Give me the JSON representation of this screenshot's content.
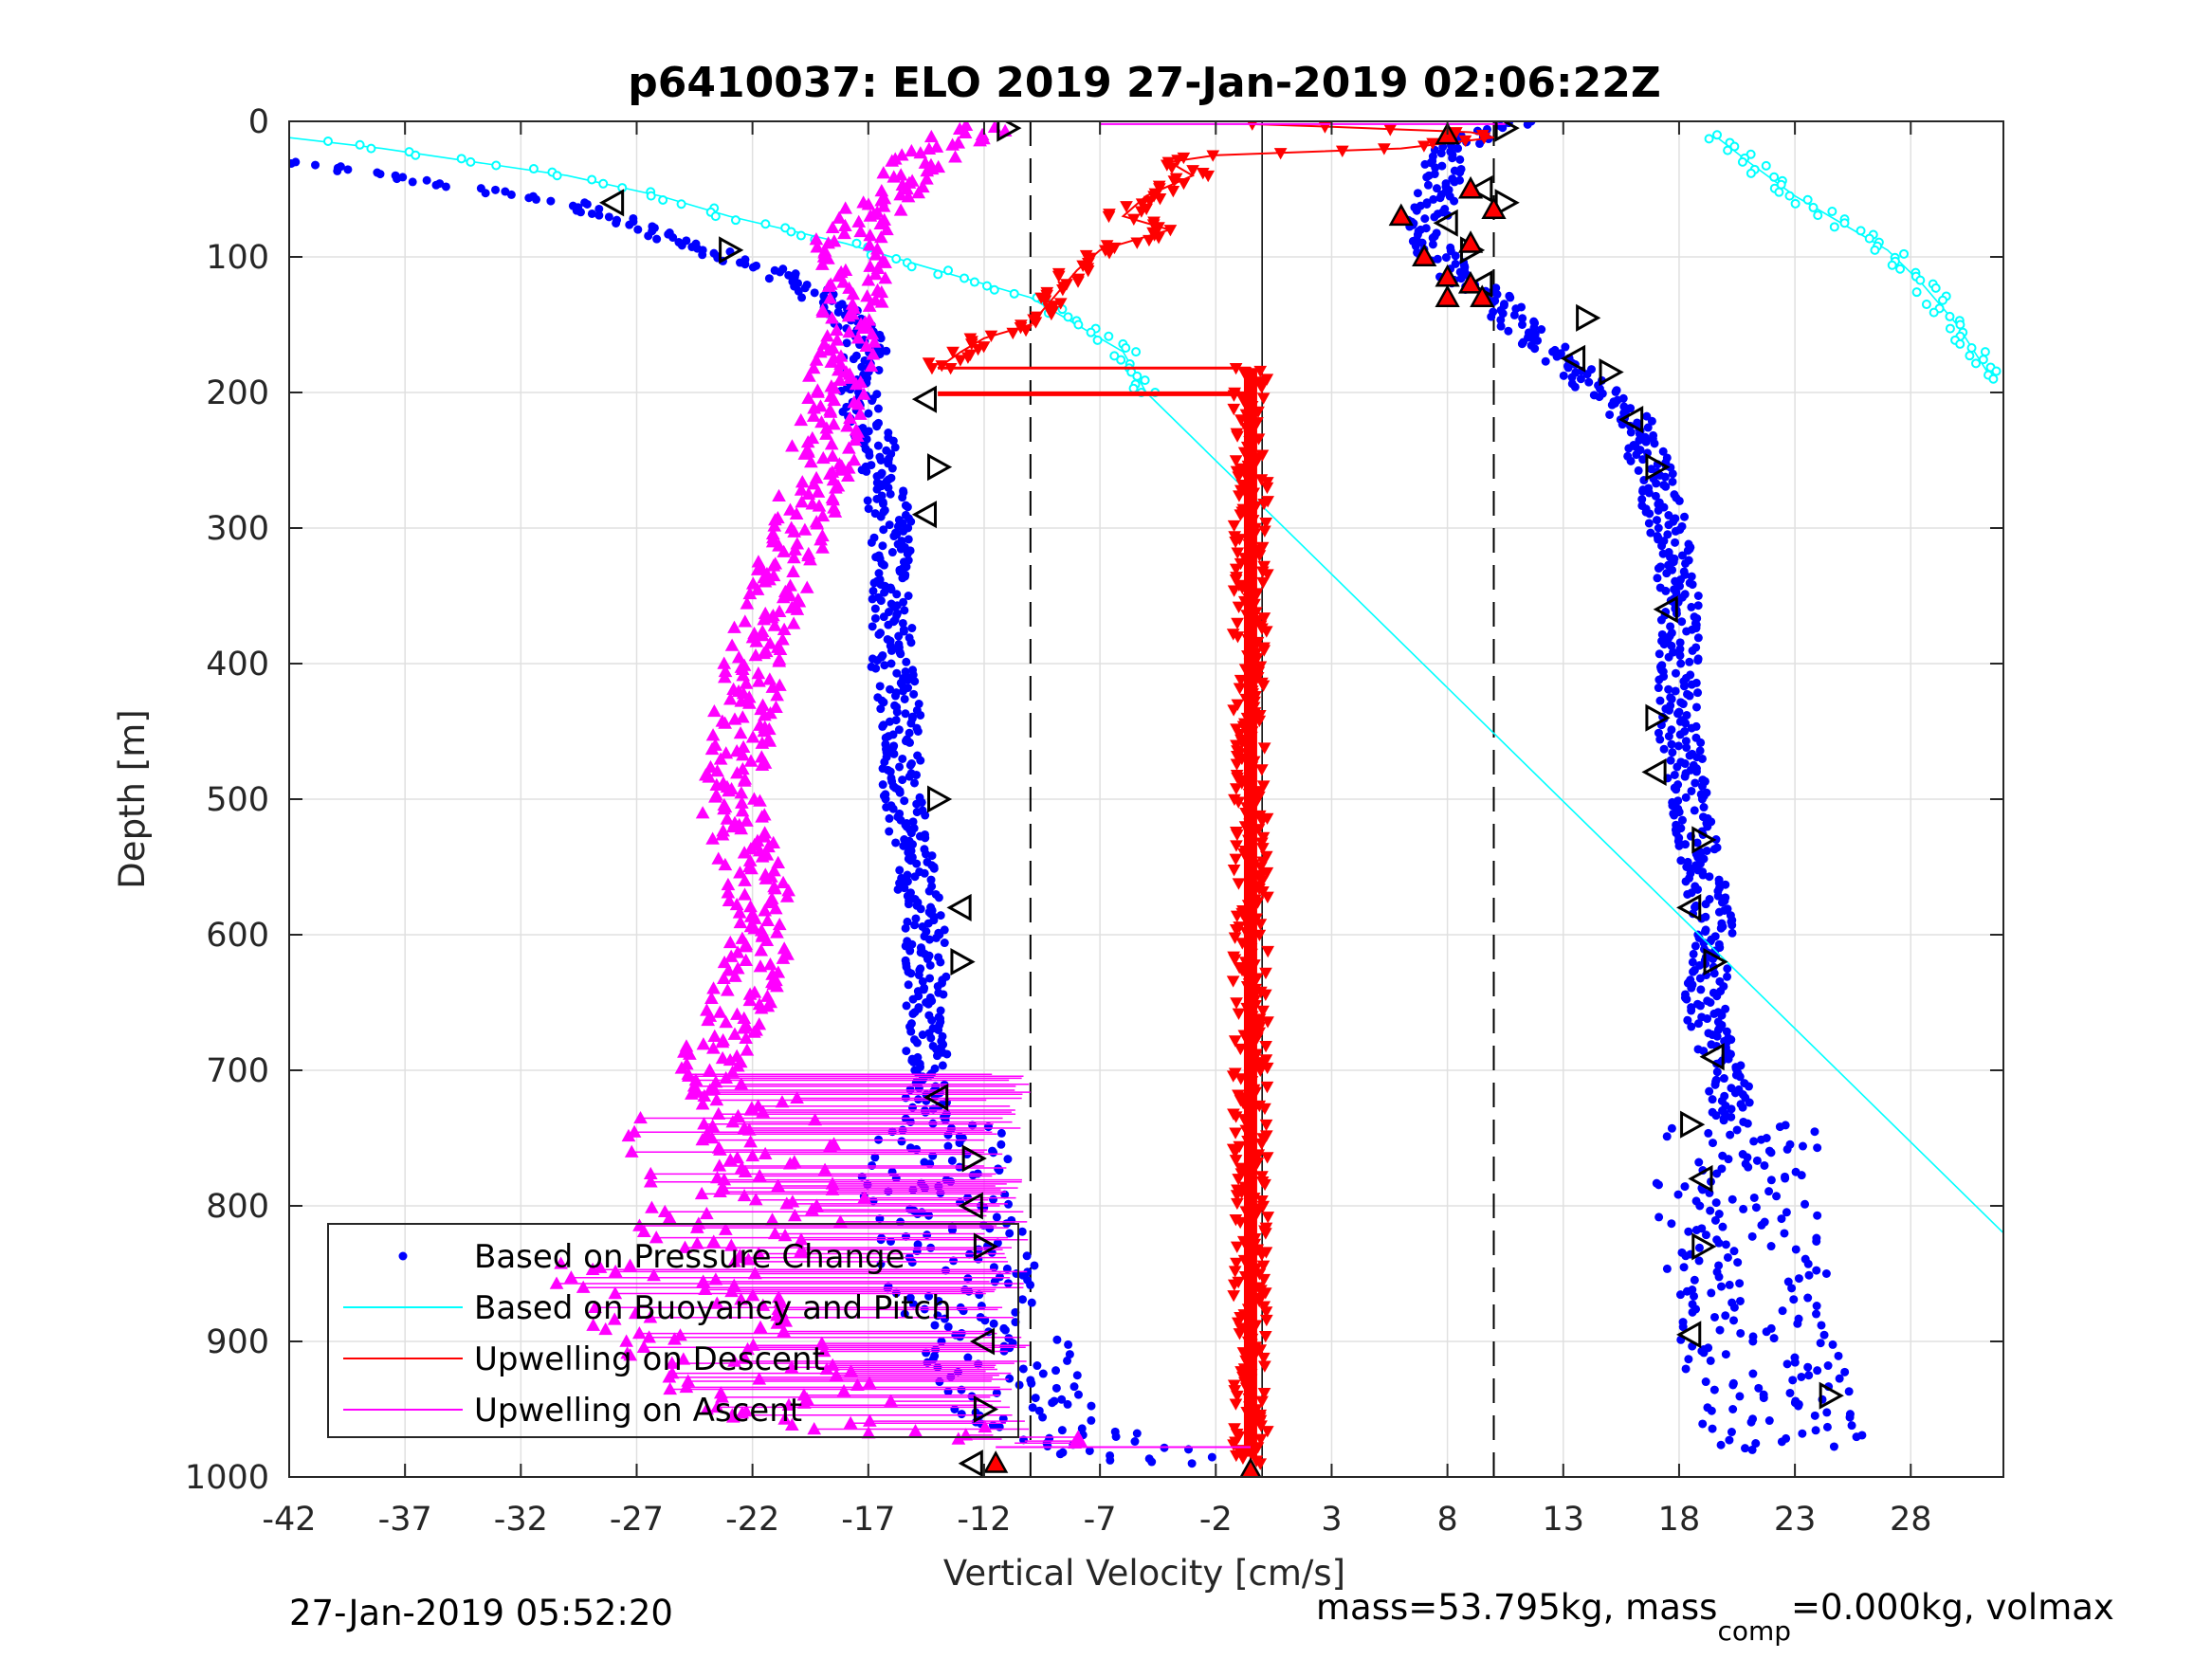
{
  "chart_data": {
    "type": "scatter",
    "title": "p6410037: ELO 2019 27-Jan-2019 02:06:22Z",
    "xlabel": "Vertical Velocity [cm/s]",
    "ylabel": "Depth [m]",
    "xlim": [
      -42,
      32
    ],
    "ylim": [
      0,
      1000
    ],
    "y_reversed": true,
    "grid": true,
    "legend_position": "bottom-left",
    "x_ticks": [
      "-42",
      "-37",
      "-32",
      "-27",
      "-22",
      "-17",
      "-12",
      "-7",
      "-2",
      "3",
      "8",
      "13",
      "18",
      "23",
      "28"
    ],
    "y_ticks": [
      "0",
      "100",
      "200",
      "300",
      "400",
      "500",
      "600",
      "700",
      "800",
      "900",
      "1000"
    ],
    "reference_lines": {
      "dashed_x": [
        -10,
        10
      ],
      "solid_x": [
        0
      ]
    },
    "series": [
      {
        "name": "Based on Pressure Change",
        "color": "#0000ff",
        "marker": "dot",
        "branches": [
          {
            "velocity": [
              -42,
              -38,
              -30,
              -24,
              -21,
              -19,
              -17,
              -17.5,
              -16.5,
              -16,
              -16,
              -16,
              -15.5,
              -15.5,
              -15,
              -14.5,
              -14.5,
              -14.5,
              -14.5,
              -14,
              -13,
              -11.5,
              -10,
              -7,
              -4
            ],
            "depth": [
              30,
              40,
              60,
              95,
              110,
              130,
              160,
              200,
              250,
              300,
              350,
              400,
              450,
              500,
              550,
              600,
              650,
              700,
              750,
              800,
              850,
              900,
              950,
              975,
              990
            ]
          },
          {
            "velocity": [
              11,
              8,
              7.5,
              7,
              8,
              10,
              11,
              12.5,
              14,
              16,
              17,
              17.5,
              18,
              18,
              18,
              18.5,
              19,
              19.5,
              19,
              20,
              20.5,
              20.5,
              21,
              21.5,
              22,
              23
            ],
            "depth": [
              0,
              20,
              60,
              80,
              110,
              130,
              150,
              170,
              190,
              220,
              260,
              300,
              350,
              400,
              450,
              500,
              550,
              600,
              650,
              700,
              750,
              800,
              850,
              900,
              950,
              980
            ]
          }
        ]
      },
      {
        "name": "Based on Buoyancy and Pitch",
        "color": "#00ffff",
        "marker": "circle",
        "branches": [
          {
            "velocity": [
              -42,
              -38,
              -34,
              -30,
              -26,
              -23,
              -18,
              -14,
              -10,
              -8,
              -6,
              -5
            ],
            "depth": [
              12,
              20,
              30,
              40,
              55,
              70,
              90,
              110,
              130,
              150,
              170,
              200
            ]
          },
          {
            "velocity": [
              -5,
              32
            ],
            "depth": [
              200,
              820
            ]
          },
          {
            "velocity": [
              19.5,
              21,
              23,
              25,
              27,
              28.5,
              30,
              31.5
            ],
            "depth": [
              10,
              30,
              55,
              75,
              95,
              120,
              150,
              190
            ]
          }
        ]
      },
      {
        "name": "Upwelling on Descent",
        "color": "#ff0000",
        "marker": "triangle-down",
        "branches": [
          {
            "velocity": [
              -0.5,
              3,
              6,
              9,
              10,
              6,
              -2,
              -4,
              -3,
              -5,
              -6,
              -4,
              -7,
              -8,
              -9,
              -10,
              -12,
              -13,
              -14
            ],
            "depth": [
              2,
              4,
              6,
              8,
              12,
              20,
              25,
              30,
              40,
              55,
              70,
              80,
              95,
              110,
              130,
              150,
              160,
              170,
              182
            ]
          },
          {
            "velocity": [
              -14,
              -0.5,
              -0.5,
              -0.5,
              -0.5
            ],
            "depth": [
              182,
              182,
              200,
              500,
              990
            ]
          }
        ]
      },
      {
        "name": "Upwelling on Ascent",
        "color": "#ff00ff",
        "marker": "triangle-up",
        "branches": [
          {
            "velocity": [
              -11.5,
              -13,
              -14.5,
              -16,
              -17,
              -18,
              -17.5,
              -18,
              -18.5,
              -19,
              -20,
              -21,
              -22,
              -22.5,
              -23,
              -22,
              -21.5,
              -22.5,
              -24,
              -23,
              -22,
              -26,
              -24,
              -20,
              -11
            ],
            "depth": [
              3,
              10,
              25,
              50,
              70,
              90,
              110,
              160,
              200,
              250,
              300,
              350,
              400,
              450,
              500,
              550,
              600,
              650,
              700,
              750,
              800,
              850,
              900,
              950,
              975
            ]
          }
        ]
      }
    ],
    "black_triangles": {
      "marker": "triangle-outline",
      "descent_velocity": [
        -28,
        -23,
        -14.5,
        -14,
        -14.5,
        -14,
        -13,
        -13,
        -14,
        -12.5,
        -12.5,
        -12,
        -12,
        -12,
        -12.5,
        -11
      ],
      "descent_depth": [
        60,
        95,
        205,
        255,
        290,
        500,
        580,
        620,
        720,
        765,
        800,
        830,
        900,
        950,
        990,
        5
      ],
      "ascent_velocity": [
        10.5,
        9.5,
        10.5,
        8,
        9,
        9.5,
        14,
        13.5,
        15,
        16,
        17,
        17.5,
        17,
        17,
        19,
        18.5,
        19.5,
        19.5,
        18.5,
        19,
        19,
        18.5,
        24.5
      ],
      "ascent_depth": [
        5,
        50,
        60,
        75,
        95,
        120,
        145,
        175,
        185,
        220,
        255,
        360,
        440,
        480,
        530,
        580,
        620,
        690,
        740,
        780,
        830,
        895,
        940
      ]
    },
    "red_triangles": {
      "velocity": [
        8,
        9,
        10,
        6,
        7,
        8,
        9,
        8,
        9,
        9.5,
        -11.5,
        -0.5
      ],
      "depth": [
        10,
        50,
        65,
        70,
        100,
        115,
        120,
        130,
        90,
        130,
        990,
        995
      ]
    }
  },
  "legend": {
    "items": [
      {
        "label": "Based on Pressure Change",
        "color": "#0000ff",
        "style": "dot"
      },
      {
        "label": "Based on Buoyancy and Pitch",
        "color": "#00ffff",
        "style": "line"
      },
      {
        "label": "Upwelling on Descent",
        "color": "#ff0000",
        "style": "line"
      },
      {
        "label": "Upwelling on Ascent",
        "color": "#ff00ff",
        "style": "line"
      }
    ]
  },
  "footer": {
    "timestamp": "27-Jan-2019 05:52:20",
    "mass_prefix": "mass=53.795kg, mass",
    "mass_subscript": "comp",
    "mass_suffix": "=0.000kg, volmax"
  }
}
